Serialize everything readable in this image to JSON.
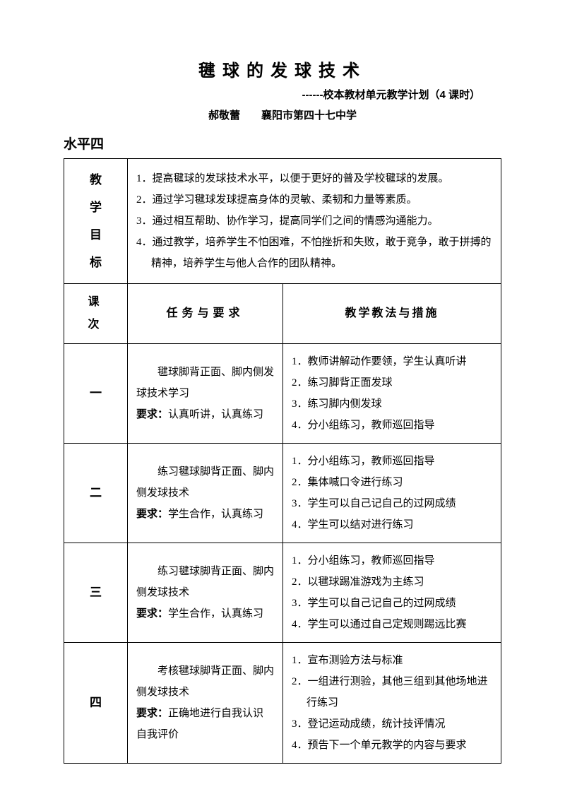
{
  "title": "毽球的发球技术",
  "subtitle": "------校本教材单元教学计划（4 课时）",
  "author": "郝敬蕾　　襄阳市第四十七中学",
  "level": "水平四",
  "goals_label": "教\n学\n目\n标",
  "goals": [
    "1．提高毽球的发球技术水平，以便于更好的普及学校毽球的发展。",
    "2．通过学习毽球发球提高身体的灵敏、柔韧和力量等素质。",
    "3．通过相互帮助、协作学习，提高同学们之间的情感沟通能力。",
    "4．通过教学，培养学生不怕困难，不怕挫折和失败，敢于竞争，敢于拼搏的精神，培养学生与他人合作的团队精神。"
  ],
  "headers": {
    "lesson_no": "课　次",
    "task": "任务与要求",
    "measures": "教学教法与措施"
  },
  "req_label": "要求：",
  "lessons": [
    {
      "no": "一",
      "task_body": "毽球脚背正面、脚内侧发球技术学习",
      "task_req": "认真听讲，认真练习",
      "measures": [
        "1．教师讲解动作要领，学生认真听讲",
        "2．练习脚背正面发球",
        "3．练习脚内侧发球",
        "4．分小组练习，教师巡回指导"
      ]
    },
    {
      "no": "二",
      "task_body": "练习毽球脚背正面、脚内侧发球技术",
      "task_req": "学生合作，认真练习",
      "measures": [
        "1．分小组练习，教师巡回指导",
        "2．集体喊口令进行练习",
        "3．学生可以自己记自己的过网成绩",
        "4．学生可以结对进行练习"
      ]
    },
    {
      "no": "三",
      "task_body": "练习毽球脚背正面、脚内侧发球技术",
      "task_req": "学生合作，认真练习",
      "measures": [
        "1．分小组练习，教师巡回指导",
        "2．以毽球踢准游戏为主练习",
        "3．学生可以自己记自己的过网成绩",
        "4．学生可以通过自己定规则踢远比赛"
      ]
    },
    {
      "no": "四",
      "task_body": "考核毽球脚背正面、脚内侧发球技术",
      "task_req": "正确地进行自我认识自我评价",
      "measures": [
        "1．宣布测验方法与标准",
        "2．一组进行测验，其他三组到其他场地进行练习",
        "3．登记运动成绩，统计技评情况",
        "4．预告下一个单元教学的内容与要求"
      ]
    }
  ]
}
